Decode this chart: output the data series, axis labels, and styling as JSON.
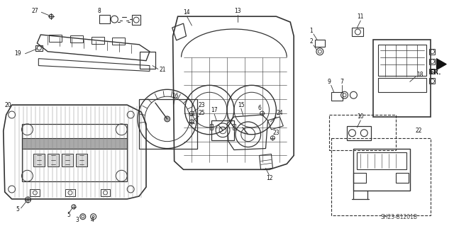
{
  "bg_color": "#ffffff",
  "line_color": "#333333",
  "figsize": [
    6.4,
    3.19
  ],
  "dpi": 100,
  "diagram_ref": "SH23-B1201B"
}
